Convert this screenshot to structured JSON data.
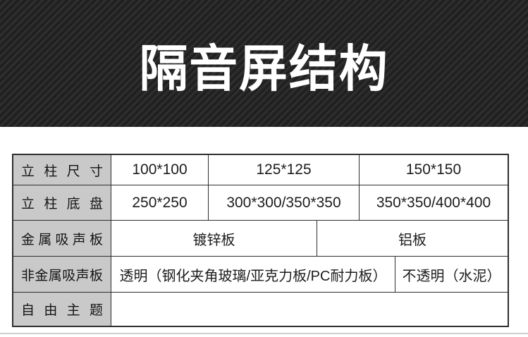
{
  "banner": {
    "title": "隔音屏结构"
  },
  "table": {
    "rows": [
      {
        "label": "立柱尺寸",
        "cells": [
          "100*100",
          "125*125",
          "150*150"
        ]
      },
      {
        "label": "立柱底盘",
        "cells": [
          "250*250",
          "300*300/350*350",
          "350*350/400*400"
        ]
      },
      {
        "label": "金属吸声板",
        "cells": [
          "镀锌板",
          "铝板"
        ]
      },
      {
        "label": "非金属吸声板",
        "cells": [
          "透明（钢化夹角玻璃/亚克力板/PC耐力板）",
          "不透明（水泥）"
        ]
      },
      {
        "label": "自由主题",
        "cells": [
          ""
        ]
      }
    ]
  },
  "colors": {
    "banner_bg": "#262626",
    "banner_text": "#ffffff",
    "label_cell_bg": "#c9c9c9",
    "table_border": "#2e2e2e",
    "cell_text": "#1c1c1c",
    "page_bg": "#ffffff"
  }
}
